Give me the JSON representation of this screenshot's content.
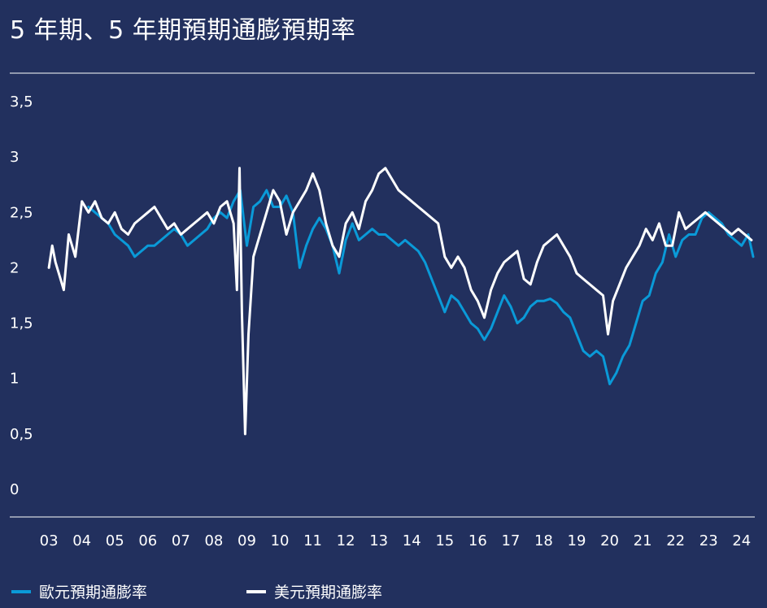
{
  "chart_data": {
    "type": "line",
    "title": "5 年期、5 年期預期通膨預期率",
    "ylim": [
      0,
      3.5
    ],
    "y_ticks": [
      "0",
      "0,5",
      "1",
      "1,5",
      "2",
      "2,5",
      "3",
      "3,5"
    ],
    "y_tick_values": [
      0,
      0.5,
      1,
      1.5,
      2,
      2.5,
      3,
      3.5
    ],
    "x_ticks": [
      "03",
      "04",
      "05",
      "06",
      "07",
      "08",
      "09",
      "10",
      "11",
      "12",
      "13",
      "14",
      "15",
      "16",
      "17",
      "18",
      "19",
      "20",
      "21",
      "22",
      "23",
      "24"
    ],
    "x_tick_values": [
      2003,
      2004,
      2005,
      2006,
      2007,
      2008,
      2009,
      2010,
      2011,
      2012,
      2013,
      2014,
      2015,
      2016,
      2017,
      2018,
      2019,
      2020,
      2021,
      2022,
      2023,
      2024
    ],
    "xlim": [
      2002.75,
      2024.4
    ],
    "legend_position": "bottom-left",
    "series": [
      {
        "name": "歐元預期通膨率",
        "color": "#0a9ad8",
        "x": [
          2004.2,
          2004.4,
          2004.6,
          2004.8,
          2005.0,
          2005.2,
          2005.4,
          2005.6,
          2005.8,
          2006.0,
          2006.2,
          2006.4,
          2006.6,
          2006.8,
          2007.0,
          2007.2,
          2007.4,
          2007.6,
          2007.8,
          2008.0,
          2008.2,
          2008.4,
          2008.6,
          2008.8,
          2009.0,
          2009.2,
          2009.4,
          2009.6,
          2009.8,
          2010.0,
          2010.2,
          2010.4,
          2010.6,
          2010.8,
          2011.0,
          2011.2,
          2011.4,
          2011.6,
          2011.8,
          2012.0,
          2012.2,
          2012.4,
          2012.6,
          2012.8,
          2013.0,
          2013.2,
          2013.4,
          2013.6,
          2013.8,
          2014.0,
          2014.2,
          2014.4,
          2014.6,
          2014.8,
          2015.0,
          2015.2,
          2015.4,
          2015.6,
          2015.8,
          2016.0,
          2016.2,
          2016.4,
          2016.6,
          2016.8,
          2017.0,
          2017.2,
          2017.4,
          2017.6,
          2017.8,
          2018.0,
          2018.2,
          2018.4,
          2018.6,
          2018.8,
          2019.0,
          2019.2,
          2019.4,
          2019.6,
          2019.8,
          2020.0,
          2020.2,
          2020.4,
          2020.6,
          2020.8,
          2021.0,
          2021.2,
          2021.4,
          2021.6,
          2021.8,
          2022.0,
          2022.2,
          2022.4,
          2022.6,
          2022.8,
          2023.0,
          2023.2,
          2023.4,
          2023.6,
          2023.8,
          2024.0,
          2024.2,
          2024.35
        ],
        "y": [
          2.55,
          2.5,
          2.45,
          2.4,
          2.3,
          2.25,
          2.2,
          2.1,
          2.15,
          2.2,
          2.2,
          2.25,
          2.3,
          2.35,
          2.3,
          2.2,
          2.25,
          2.3,
          2.35,
          2.45,
          2.5,
          2.45,
          2.6,
          2.7,
          2.2,
          2.55,
          2.6,
          2.7,
          2.55,
          2.55,
          2.65,
          2.5,
          2.0,
          2.2,
          2.35,
          2.45,
          2.35,
          2.2,
          1.95,
          2.25,
          2.4,
          2.25,
          2.3,
          2.35,
          2.3,
          2.3,
          2.25,
          2.2,
          2.25,
          2.2,
          2.15,
          2.05,
          1.9,
          1.75,
          1.6,
          1.75,
          1.7,
          1.6,
          1.5,
          1.45,
          1.35,
          1.45,
          1.6,
          1.75,
          1.65,
          1.5,
          1.55,
          1.65,
          1.7,
          1.7,
          1.72,
          1.68,
          1.6,
          1.55,
          1.4,
          1.25,
          1.2,
          1.25,
          1.2,
          0.95,
          1.05,
          1.2,
          1.3,
          1.5,
          1.7,
          1.75,
          1.95,
          2.05,
          2.3,
          2.1,
          2.25,
          2.3,
          2.3,
          2.45,
          2.5,
          2.45,
          2.4,
          2.3,
          2.25,
          2.2,
          2.3,
          2.1
        ]
      },
      {
        "name": "美元預期通膨率",
        "color": "#ffffff",
        "x": [
          2003.0,
          2003.1,
          2003.2,
          2003.3,
          2003.45,
          2003.6,
          2003.8,
          2004.0,
          2004.2,
          2004.4,
          2004.6,
          2004.8,
          2005.0,
          2005.2,
          2005.4,
          2005.6,
          2005.8,
          2006.0,
          2006.2,
          2006.4,
          2006.6,
          2006.8,
          2007.0,
          2007.2,
          2007.4,
          2007.6,
          2007.8,
          2008.0,
          2008.2,
          2008.4,
          2008.6,
          2008.7,
          2008.78,
          2008.85,
          2008.95,
          2009.05,
          2009.2,
          2009.4,
          2009.6,
          2009.8,
          2010.0,
          2010.2,
          2010.4,
          2010.6,
          2010.8,
          2011.0,
          2011.2,
          2011.4,
          2011.6,
          2011.8,
          2012.0,
          2012.2,
          2012.4,
          2012.6,
          2012.8,
          2013.0,
          2013.2,
          2013.4,
          2013.6,
          2013.8,
          2014.0,
          2014.2,
          2014.4,
          2014.6,
          2014.8,
          2015.0,
          2015.2,
          2015.4,
          2015.6,
          2015.8,
          2016.0,
          2016.2,
          2016.4,
          2016.6,
          2016.8,
          2017.0,
          2017.2,
          2017.4,
          2017.6,
          2017.8,
          2018.0,
          2018.2,
          2018.4,
          2018.6,
          2018.8,
          2019.0,
          2019.2,
          2019.4,
          2019.6,
          2019.8,
          2019.95,
          2020.1,
          2020.3,
          2020.5,
          2020.7,
          2020.9,
          2021.1,
          2021.3,
          2021.5,
          2021.7,
          2021.9,
          2022.1,
          2022.3,
          2022.5,
          2022.7,
          2022.9,
          2023.1,
          2023.3,
          2023.5,
          2023.7,
          2023.9,
          2024.1,
          2024.3
        ],
        "y": [
          2.0,
          2.2,
          2.05,
          1.95,
          1.8,
          2.3,
          2.1,
          2.6,
          2.5,
          2.6,
          2.45,
          2.4,
          2.5,
          2.35,
          2.3,
          2.4,
          2.45,
          2.5,
          2.55,
          2.45,
          2.35,
          2.4,
          2.3,
          2.35,
          2.4,
          2.45,
          2.5,
          2.4,
          2.55,
          2.6,
          2.4,
          1.8,
          2.9,
          1.6,
          0.5,
          1.4,
          2.1,
          2.3,
          2.5,
          2.7,
          2.6,
          2.3,
          2.5,
          2.6,
          2.7,
          2.85,
          2.7,
          2.4,
          2.2,
          2.1,
          2.4,
          2.5,
          2.35,
          2.6,
          2.7,
          2.85,
          2.9,
          2.8,
          2.7,
          2.65,
          2.6,
          2.55,
          2.5,
          2.45,
          2.4,
          2.1,
          2.0,
          2.1,
          2.0,
          1.8,
          1.7,
          1.55,
          1.8,
          1.95,
          2.05,
          2.1,
          2.15,
          1.9,
          1.85,
          2.05,
          2.2,
          2.25,
          2.3,
          2.2,
          2.1,
          1.95,
          1.9,
          1.85,
          1.8,
          1.75,
          1.4,
          1.7,
          1.85,
          2.0,
          2.1,
          2.2,
          2.35,
          2.25,
          2.4,
          2.2,
          2.2,
          2.5,
          2.35,
          2.4,
          2.45,
          2.5,
          2.45,
          2.4,
          2.35,
          2.3,
          2.35,
          2.3,
          2.25
        ]
      }
    ]
  }
}
